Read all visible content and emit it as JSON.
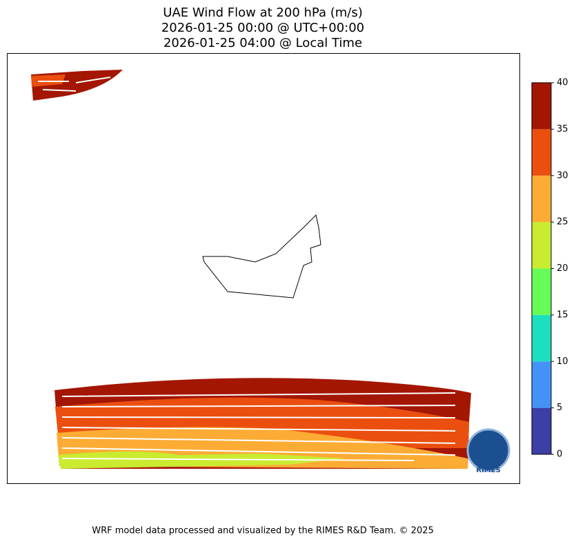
{
  "title": [
    "UAE Wind Flow at 200 hPa (m/s)",
    "2026-01-25 00:00 @ UTC+00:00",
    "2026-01-25 04:00 @ Local Time"
  ],
  "colorbar": {
    "levels": [
      0,
      5,
      10,
      15,
      20,
      25,
      30,
      35,
      40
    ],
    "colors": [
      "#3d3fa6",
      "#4293f5",
      "#1ddfbf",
      "#67fd58",
      "#c9eb30",
      "#fcac35",
      "#ea4f10",
      "#a31602"
    ]
  },
  "logo": "RIMES",
  "footer": "WRF model data processed and visualized by the RIMES R&D Team. © 2025"
}
